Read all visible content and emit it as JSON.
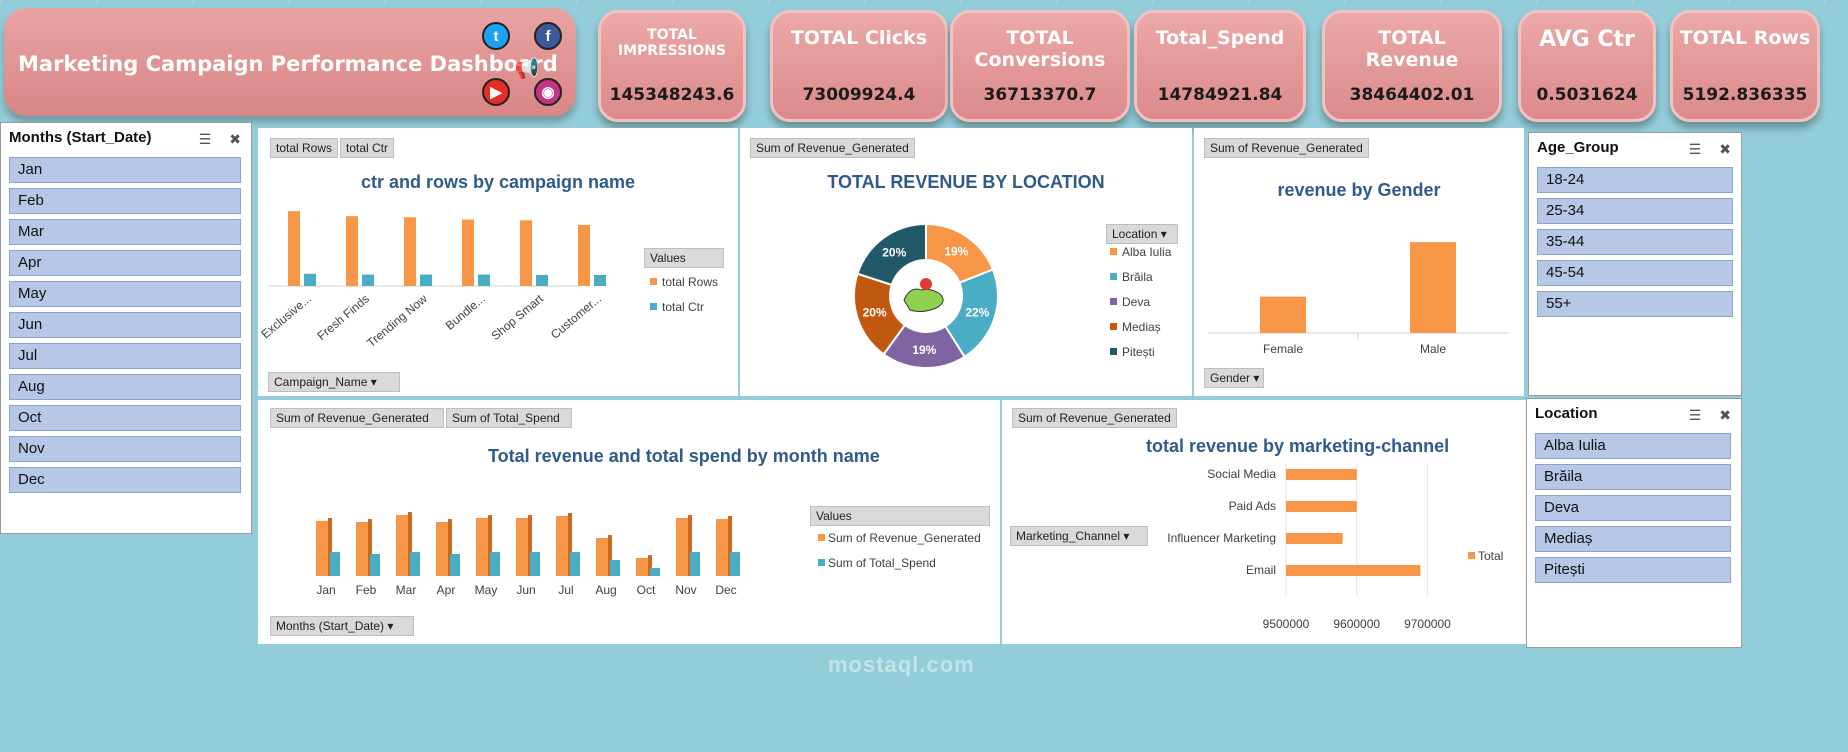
{
  "title": "Marketing Campaign Performance Dashboard",
  "social_icons": [
    "twitter-icon",
    "facebook-icon",
    "megaphone-icon",
    "youtube-icon",
    "instagram-icon"
  ],
  "kpis": [
    {
      "label": "TOTAL IMPRESSIONS",
      "value": "145348243.6"
    },
    {
      "label": "TOTAL Clicks",
      "value": "73009924.4"
    },
    {
      "label": "TOTAL Conversions",
      "value": "36713370.7"
    },
    {
      "label": "Total_Spend",
      "value": "14784921.84"
    },
    {
      "label": "TOTAL Revenue",
      "value": "38464402.01"
    },
    {
      "label": "AVG Ctr",
      "value": "0.5031624"
    },
    {
      "label": "TOTAL Rows",
      "value": "5192.836335"
    }
  ],
  "slicers": {
    "months": {
      "title": "Months (Start_Date)",
      "items": [
        "Jan",
        "Feb",
        "Mar",
        "Apr",
        "May",
        "Jun",
        "Jul",
        "Aug",
        "Oct",
        "Nov",
        "Dec"
      ]
    },
    "age": {
      "title": "Age_Group",
      "items": [
        "18-24",
        "25-34",
        "35-44",
        "45-54",
        "55+"
      ]
    },
    "location": {
      "title": "Location",
      "items": [
        "Alba Iulia",
        "Brăila",
        "Deva",
        "Mediaș",
        "Pitești"
      ]
    }
  },
  "colors": {
    "orange": "#f79646",
    "teal": "#4bacc6",
    "purple": "#8064a2",
    "brown": "#c0580f",
    "navy": "#215968",
    "title": "#2f5b8c"
  },
  "chart_data": [
    {
      "type": "bar",
      "title": "ctr and rows by campaign name",
      "field_buttons": [
        "total Rows",
        "total Ctr"
      ],
      "axis_field": "Campaign_Name",
      "legend_title": "Values",
      "categories": [
        "Exclusive...",
        "Fresh Finds",
        "Trending Now",
        "Bundle...",
        "Shop Smart",
        "Customer..."
      ],
      "series": [
        {
          "name": "total Rows",
          "values": [
            980,
            915,
            900,
            870,
            860,
            800
          ]
        },
        {
          "name": "total Ctr",
          "values": [
            160,
            150,
            150,
            150,
            145,
            145
          ]
        }
      ],
      "ylim": [
        0,
        1100
      ]
    },
    {
      "type": "pie",
      "title": "TOTAL REVENUE BY LOCATION",
      "field_buttons": [
        "Sum of Revenue_Generated"
      ],
      "legend_title": "Location",
      "categories": [
        "Alba Iulia",
        "Brăila",
        "Deva",
        "Mediaș",
        "Pitești"
      ],
      "values": [
        19,
        22,
        19,
        20,
        20
      ],
      "labels": [
        "19%",
        "22%",
        "19%",
        "20%",
        "20%"
      ]
    },
    {
      "type": "bar",
      "title": "revenue by Gender",
      "field_buttons": [
        "Sum of Revenue_Generated"
      ],
      "axis_field": "Gender",
      "categories": [
        "Female",
        "Male"
      ],
      "values": [
        40,
        100
      ],
      "ylim": [
        0,
        110
      ]
    },
    {
      "type": "bar",
      "title": "Total revenue and total spend by month name",
      "field_buttons": [
        "Sum of Revenue_Generated",
        "Sum of Total_Spend"
      ],
      "axis_field": "Months (Start_Date)",
      "legend_title": "Values",
      "categories": [
        "Jan",
        "Feb",
        "Mar",
        "Apr",
        "May",
        "Jun",
        "Jul",
        "Aug",
        "Oct",
        "Nov",
        "Dec"
      ],
      "series": [
        {
          "name": "Sum of Revenue_Generated",
          "values": [
            55,
            54,
            61,
            54,
            58,
            58,
            60,
            38,
            18,
            58,
            57
          ]
        },
        {
          "name": "Sum of Total_Spend",
          "values": [
            24,
            22,
            24,
            22,
            24,
            24,
            24,
            16,
            8,
            24,
            24
          ]
        }
      ],
      "ylim": [
        0,
        70
      ]
    },
    {
      "type": "bar",
      "orientation": "horizontal",
      "title": "total revenue by marketing-channel",
      "field_buttons": [
        "Sum of Revenue_Generated"
      ],
      "axis_field": "Marketing_Channel",
      "categories": [
        "Social Media",
        "Paid Ads",
        "Influencer Marketing",
        "Email"
      ],
      "series": [
        {
          "name": "Total",
          "values": [
            9600000,
            9600000,
            9580000,
            9690000
          ]
        }
      ],
      "xlim": [
        9500000,
        9750000
      ],
      "xticks": [
        "9500000",
        "9600000",
        "9700000"
      ]
    }
  ],
  "watermark": "mostaql.com"
}
